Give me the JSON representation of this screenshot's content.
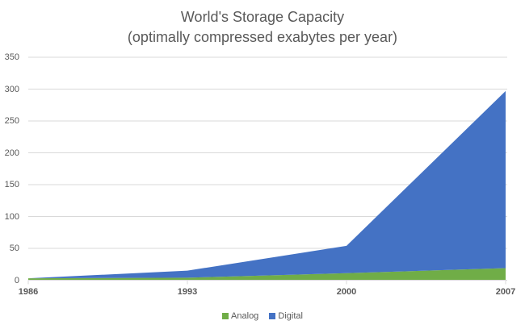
{
  "chart_data": {
    "type": "area",
    "stacked": true,
    "title": "World's Storage Capacity",
    "subtitle": "(optimally compressed exabytes per year)",
    "xlabel": "",
    "ylabel": "",
    "categories": [
      "1986",
      "1993",
      "2000",
      "2007"
    ],
    "series": [
      {
        "name": "Analog",
        "color": "#70AD47",
        "values": [
          3,
          4,
          11,
          19
        ]
      },
      {
        "name": "Digital",
        "color": "#4472C4",
        "values": [
          0,
          11,
          43,
          278
        ]
      }
    ],
    "ylim": [
      0,
      350
    ],
    "yticks": [
      "0",
      "50",
      "100",
      "150",
      "200",
      "250",
      "300",
      "350"
    ],
    "grid": true,
    "legend_position": "bottom"
  },
  "legend": {
    "items": [
      {
        "label": "Analog",
        "color": "#70AD47"
      },
      {
        "label": "Digital",
        "color": "#4472C4"
      }
    ]
  }
}
